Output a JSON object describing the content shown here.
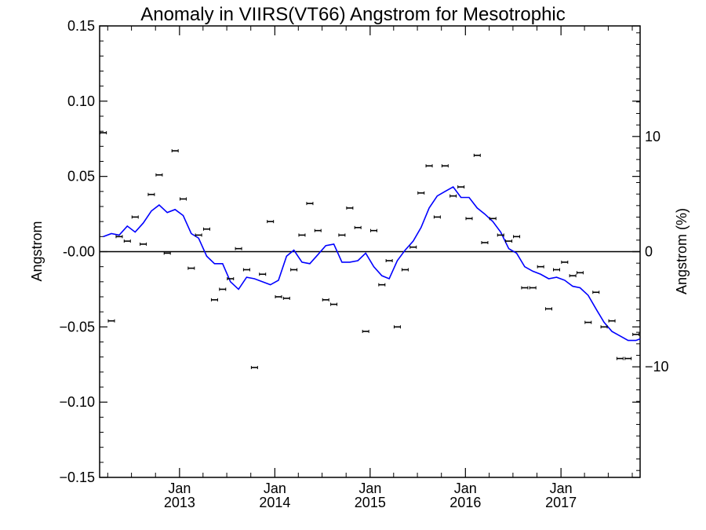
{
  "chart_data": {
    "type": "scatter",
    "title": "Anomaly in VIIRS(VT66) Angstrom for Mesotrophic",
    "ylabel": "Angstrom",
    "y2label": "Angstrom (%)",
    "ylim": [
      -0.15,
      0.15
    ],
    "y2lim": [
      -19.6,
      19.6
    ],
    "xlim": [
      "2012-03-01",
      "2017-10-31"
    ],
    "yticks": [
      {
        "v": 0.15,
        "label": "0.15"
      },
      {
        "v": 0.1,
        "label": "0.10"
      },
      {
        "v": 0.05,
        "label": "0.05"
      },
      {
        "v": 0.0,
        "label": "-0.00"
      },
      {
        "v": -0.05,
        "label": "−0.05"
      },
      {
        "v": -0.1,
        "label": "−0.10"
      },
      {
        "v": -0.15,
        "label": "−0.15"
      }
    ],
    "y2ticks": [
      {
        "v": 10,
        "label": "10"
      },
      {
        "v": 0,
        "label": "0"
      },
      {
        "v": -10,
        "label": "−10"
      }
    ],
    "xticks": [
      {
        "date": "2013-01-01",
        "month": "Jan",
        "year": "2013"
      },
      {
        "date": "2014-01-01",
        "month": "Jan",
        "year": "2014"
      },
      {
        "date": "2015-01-01",
        "month": "Jan",
        "year": "2015"
      },
      {
        "date": "2016-01-01",
        "month": "Jan",
        "year": "2016"
      },
      {
        "date": "2017-01-01",
        "month": "Jan",
        "year": "2017"
      }
    ],
    "zero_line": true,
    "colors": {
      "points": "#000000",
      "line": "#0000ff",
      "axes": "#000000"
    },
    "series": [
      {
        "kind": "points",
        "x": [
          "2012-03",
          "2012-04",
          "2012-05",
          "2012-06",
          "2012-07",
          "2012-08",
          "2012-09",
          "2012-10",
          "2012-11",
          "2012-12",
          "2013-01",
          "2013-02",
          "2013-03",
          "2013-04",
          "2013-05",
          "2013-06",
          "2013-07",
          "2013-08",
          "2013-09",
          "2013-10",
          "2013-11",
          "2013-12",
          "2014-01",
          "2014-02",
          "2014-03",
          "2014-04",
          "2014-05",
          "2014-06",
          "2014-07",
          "2014-08",
          "2014-09",
          "2014-10",
          "2014-11",
          "2014-12",
          "2015-01",
          "2015-02",
          "2015-03",
          "2015-04",
          "2015-05",
          "2015-06",
          "2015-07",
          "2015-08",
          "2015-09",
          "2015-10",
          "2015-11",
          "2015-12",
          "2016-01",
          "2016-02",
          "2016-03",
          "2016-04",
          "2016-05",
          "2016-06",
          "2016-07",
          "2016-08",
          "2016-09",
          "2016-10",
          "2016-11",
          "2016-12",
          "2017-01",
          "2017-02",
          "2017-03",
          "2017-04",
          "2017-05",
          "2017-06",
          "2017-07",
          "2017-08",
          "2017-09",
          "2017-10"
        ],
        "values": [
          0.079,
          -0.046,
          0.01,
          0.007,
          0.023,
          0.005,
          0.038,
          0.051,
          -0.001,
          0.067,
          0.035,
          -0.011,
          0.011,
          0.015,
          -0.032,
          -0.025,
          -0.018,
          0.002,
          -0.012,
          -0.077,
          -0.015,
          0.02,
          -0.03,
          -0.031,
          -0.012,
          0.011,
          0.032,
          0.014,
          -0.032,
          -0.035,
          0.011,
          0.029,
          0.016,
          -0.053,
          0.014,
          -0.022,
          -0.006,
          -0.05,
          -0.012,
          0.003,
          0.039,
          0.057,
          0.023,
          0.057,
          0.037,
          0.043,
          0.022,
          0.064,
          0.006,
          0.022,
          0.011,
          0.007,
          0.01,
          -0.024,
          -0.024,
          -0.01,
          -0.038,
          -0.012,
          -0.007,
          -0.016,
          -0.014,
          -0.047,
          -0.027,
          -0.05,
          -0.046,
          -0.071,
          -0.071,
          -0.055
        ]
      },
      {
        "kind": "line",
        "x": [
          "2012-03",
          "2012-04",
          "2012-05",
          "2012-06",
          "2012-07",
          "2012-08",
          "2012-09",
          "2012-10",
          "2012-11",
          "2012-12",
          "2013-01",
          "2013-02",
          "2013-03",
          "2013-04",
          "2013-05",
          "2013-06",
          "2013-07",
          "2013-08",
          "2013-09",
          "2013-10",
          "2013-11",
          "2013-12",
          "2014-01",
          "2014-02",
          "2014-03",
          "2014-04",
          "2014-05",
          "2014-06",
          "2014-07",
          "2014-08",
          "2014-09",
          "2014-10",
          "2014-11",
          "2014-12",
          "2015-01",
          "2015-02",
          "2015-03",
          "2015-04",
          "2015-05",
          "2015-06",
          "2015-07",
          "2015-08",
          "2015-09",
          "2015-10",
          "2015-11",
          "2015-12",
          "2016-01",
          "2016-02",
          "2016-03",
          "2016-04",
          "2016-05",
          "2016-06",
          "2016-07",
          "2016-08",
          "2016-09",
          "2016-10",
          "2016-11",
          "2016-12",
          "2017-01",
          "2017-02",
          "2017-03",
          "2017-04",
          "2017-05",
          "2017-06",
          "2017-07",
          "2017-08",
          "2017-09",
          "2017-10",
          "2017-10-31"
        ],
        "values": [
          0.01,
          0.012,
          0.011,
          0.017,
          0.013,
          0.019,
          0.027,
          0.031,
          0.026,
          0.028,
          0.024,
          0.012,
          0.009,
          -0.003,
          -0.008,
          -0.008,
          -0.02,
          -0.025,
          -0.017,
          -0.018,
          -0.02,
          -0.022,
          -0.019,
          -0.003,
          0.001,
          -0.007,
          -0.008,
          -0.002,
          0.004,
          0.005,
          -0.007,
          -0.007,
          -0.006,
          -0.001,
          -0.01,
          -0.016,
          -0.018,
          -0.006,
          0.001,
          0.007,
          0.016,
          0.029,
          0.037,
          0.04,
          0.043,
          0.036,
          0.036,
          0.029,
          0.025,
          0.02,
          0.013,
          0.002,
          -0.001,
          -0.01,
          -0.013,
          -0.015,
          -0.018,
          -0.017,
          -0.019,
          -0.023,
          -0.024,
          -0.029,
          -0.038,
          -0.047,
          -0.053,
          -0.056,
          -0.059,
          -0.059,
          -0.058
        ]
      }
    ]
  }
}
